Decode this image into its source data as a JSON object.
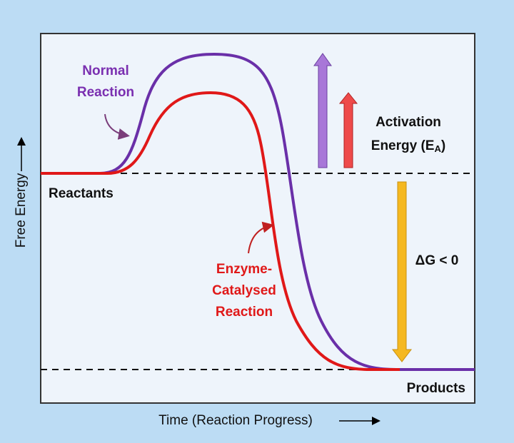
{
  "diagram": {
    "normal_label": [
      "Normal",
      "Reaction"
    ],
    "enzyme_label": [
      "Enzyme-",
      "Catalysed",
      "Reaction"
    ],
    "reactants": "Reactants",
    "products": "Products",
    "activation": {
      "line1": "Activation",
      "line2": "Energy (E",
      "subscript": "A",
      "close": ")"
    },
    "delta_g": "ΔG < 0",
    "y_axis": "Free Energy",
    "x_axis": "Time (Reaction Progress)"
  }
}
